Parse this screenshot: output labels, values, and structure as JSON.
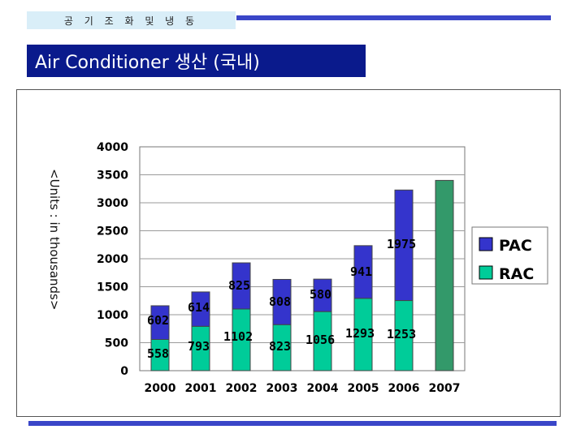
{
  "header": {
    "section_label": "공 기 조 화 및 냉 동",
    "title": "Air Conditioner 생산 (국내)"
  },
  "colors": {
    "pac": "#3434cc",
    "rac": "#00cc99",
    "total_2007": "#33996a",
    "accent": "#0a1a8c"
  },
  "chart_data": {
    "type": "bar",
    "stacked": true,
    "title": "",
    "xlabel": "",
    "ylabel": "<Units : in thousands>",
    "ylim": [
      0,
      4000
    ],
    "yticks": [
      "0",
      "500",
      "1000",
      "1500",
      "2000",
      "2500",
      "3000",
      "3500",
      "4000"
    ],
    "categories": [
      "2000",
      "2001",
      "2002",
      "2003",
      "2004",
      "2005",
      "2006",
      "2007"
    ],
    "series": [
      {
        "name": "RAC",
        "values": [
          558,
          793,
          1102,
          823,
          1056,
          1293,
          1253,
          3400
        ],
        "labels": [
          "558",
          "793",
          "1102",
          "823",
          "1056",
          "1293",
          "1253",
          ""
        ]
      },
      {
        "name": "PAC",
        "values": [
          602,
          614,
          825,
          808,
          580,
          941,
          1975,
          null
        ],
        "labels": [
          "602",
          "614",
          "825",
          "808",
          "580",
          "941",
          "1975",
          ""
        ]
      }
    ],
    "grid": true,
    "legend": "right"
  }
}
